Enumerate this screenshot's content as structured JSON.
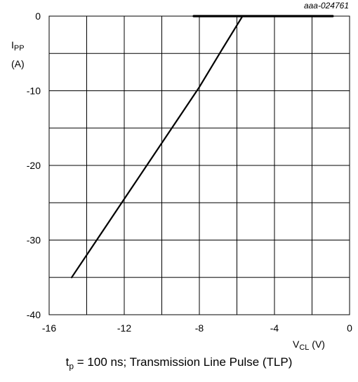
{
  "chart_data": {
    "type": "line",
    "figure_code": "aaa-024761",
    "ylabel": {
      "main": "I",
      "sub": "PP",
      "unit": "(A)"
    },
    "xlabel": {
      "main": "V",
      "sub": "CL",
      "unit": " (V)"
    },
    "xlim": [
      -16,
      0
    ],
    "ylim": [
      -40,
      0
    ],
    "x_ticks": [
      -16,
      -12,
      -8,
      -4,
      0
    ],
    "y_ticks": [
      0,
      -10,
      -20,
      -30,
      -40
    ],
    "grid": true,
    "series": [
      {
        "style": "thin",
        "points": [
          [
            -14.8,
            -35.0
          ],
          [
            -12.0,
            -24.5
          ],
          [
            -8.0,
            -9.5
          ],
          [
            -6.8,
            -4.5
          ],
          [
            -5.7,
            0.0
          ]
        ]
      },
      {
        "style": "thick",
        "points": [
          [
            -8.3,
            0.0
          ],
          [
            -0.9,
            0.0
          ]
        ]
      }
    ]
  },
  "caption": {
    "pre": "t",
    "sub": "p",
    "post": " = 100 ns; Transmission Line Pulse (TLP)"
  }
}
